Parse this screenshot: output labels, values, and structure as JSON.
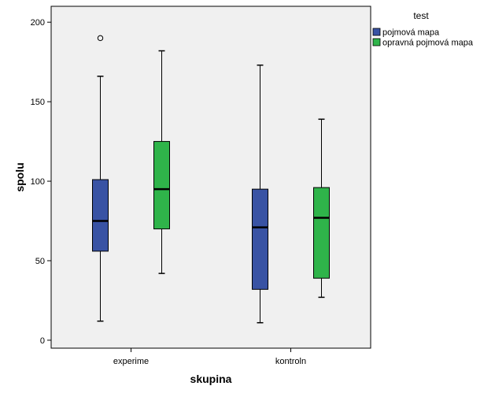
{
  "chart_data": {
    "type": "boxplot",
    "xlabel": "skupina",
    "ylabel": "spolu",
    "categories": [
      "experime",
      "kontroln"
    ],
    "ylim": [
      -5,
      210
    ],
    "yticks": [
      0,
      50,
      100,
      150,
      200
    ],
    "grid": false,
    "legend": {
      "title": "test",
      "placement": "right"
    },
    "series": [
      {
        "name": "pojmová mapa",
        "color": "#3953a4",
        "boxes": [
          {
            "category": "experime",
            "min": 12,
            "q1": 56,
            "median": 75,
            "q3": 101,
            "max": 166,
            "outliers": [
              190
            ]
          },
          {
            "category": "kontroln",
            "min": 11,
            "q1": 32,
            "median": 71,
            "q3": 95,
            "max": 173,
            "outliers": []
          }
        ]
      },
      {
        "name": "opravná pojmová mapa",
        "color": "#2fb44a",
        "boxes": [
          {
            "category": "experime",
            "min": 42,
            "q1": 70,
            "median": 95,
            "q3": 125,
            "max": 182,
            "outliers": []
          },
          {
            "category": "kontroln",
            "min": 27,
            "q1": 39,
            "median": 77,
            "q3": 96,
            "max": 139,
            "outliers": []
          }
        ]
      }
    ]
  }
}
